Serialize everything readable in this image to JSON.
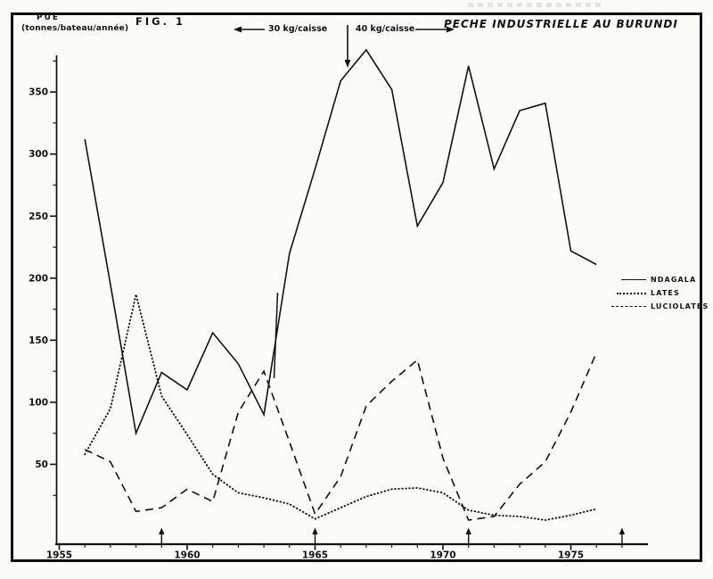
{
  "figure": {
    "fig_label": "FIG. 1",
    "pue_label": "PUE",
    "pue_unit": "(tonnes/bateau/année)",
    "title": "PECHE INDUSTRIELLE AU BURUNDI",
    "annotation_left_label": "30 kg/caisse",
    "annotation_right_label": "40 kg/caisse"
  },
  "chart_data": {
    "type": "line",
    "title": "PECHE INDUSTRIELLE AU BURUNDI",
    "ylabel": "PUE (tonnes/bateau/année)",
    "xlabel": "",
    "x": [
      1956,
      1957,
      1958,
      1959,
      1960,
      1961,
      1962,
      1963,
      1964,
      1965,
      1966,
      1967,
      1968,
      1969,
      1970,
      1971,
      1972,
      1973,
      1974,
      1975,
      1976
    ],
    "series": [
      {
        "name": "NDAGALA",
        "style": "solid",
        "values": [
          312,
          195,
          75,
          124,
          110,
          156,
          131,
          90,
          220,
          288,
          359,
          384,
          352,
          242,
          277,
          371,
          288,
          335,
          341,
          222,
          211
        ]
      },
      {
        "name": "LATES",
        "style": "dotted",
        "values": [
          58,
          95,
          187,
          105,
          74,
          42,
          27,
          23,
          18,
          6,
          15,
          24,
          30,
          31,
          27,
          13,
          9,
          8,
          5,
          9,
          14
        ]
      },
      {
        "name": "LUCIOLATES",
        "style": "dashed",
        "values": [
          62,
          52,
          12,
          15,
          30,
          20,
          92,
          125,
          68,
          10,
          40,
          97,
          117,
          134,
          55,
          5,
          8,
          34,
          52,
          92,
          140
        ]
      }
    ],
    "y_ticks": [
      50,
      100,
      150,
      200,
      250,
      300,
      350
    ],
    "x_tick_labels": [
      1955,
      1960,
      1965,
      1970,
      1975
    ],
    "x_minor_ticks_every_year": true,
    "xlim": [
      1955,
      1978
    ],
    "ylim": [
      0,
      395
    ],
    "grid": false,
    "legend_position": "right-middle",
    "event_marker_years": [
      1959,
      1965,
      1971,
      1977
    ],
    "annotations": [
      {
        "text": "30 kg/caisse",
        "arrow": "points-left",
        "meaning": "period before ~1966"
      },
      {
        "text": "40 kg/caisse",
        "arrow": "points-right",
        "meaning": "period after ~1966"
      },
      {
        "type": "down-arrow",
        "x_year": 1966.3,
        "note": "marks change of caisse weight on NDAGALA curve"
      },
      {
        "type": "short-vertical-stroke",
        "x_year": 1963.5,
        "value_range": [
          115,
          185
        ]
      }
    ],
    "line_color": "#111111"
  }
}
